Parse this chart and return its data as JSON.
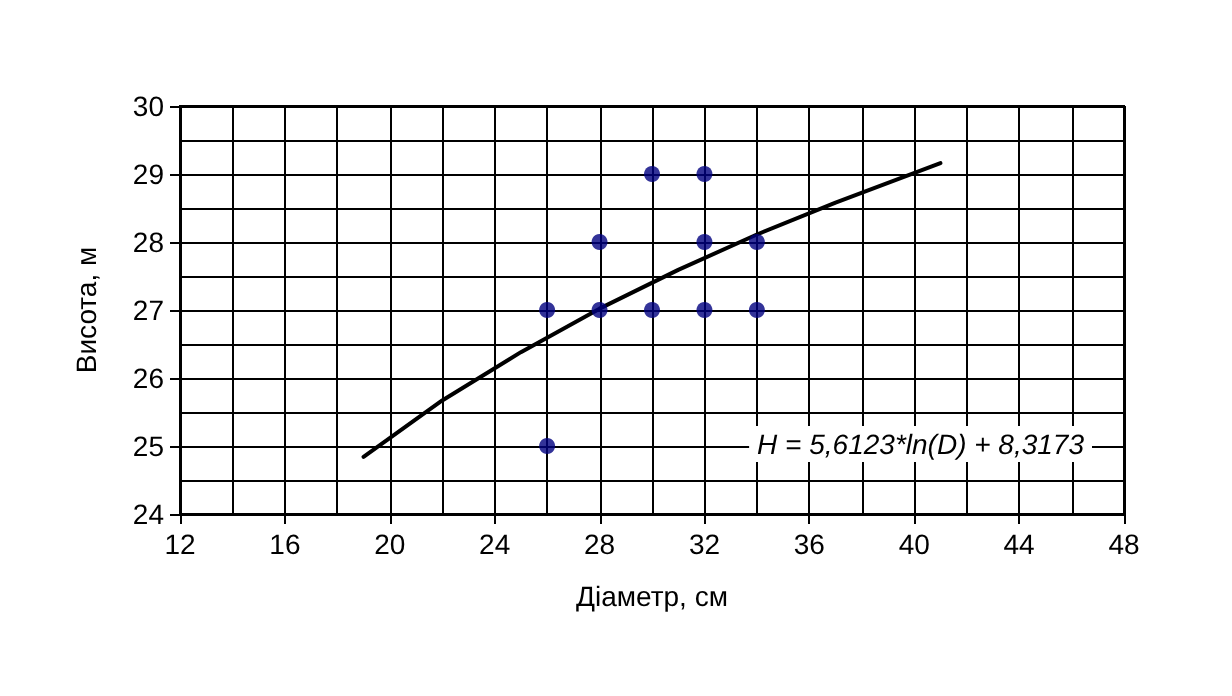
{
  "chart_data": {
    "type": "scatter",
    "xlabel": "Діаметр, см",
    "ylabel": "Висота, м",
    "xlim": [
      12,
      48
    ],
    "xticks": [
      12,
      16,
      20,
      24,
      28,
      32,
      36,
      40,
      44,
      48
    ],
    "ylim": [
      24,
      30
    ],
    "yticks": [
      24,
      25,
      26,
      27,
      28,
      29,
      30
    ],
    "grid": true,
    "marker": "circle",
    "series": [
      {
        "color": "#000080",
        "x": [
          26,
          26,
          28,
          28,
          30,
          30,
          32,
          32,
          32,
          34,
          34
        ],
        "values": [
          27,
          25,
          28,
          27,
          29,
          27,
          29,
          28,
          27,
          28,
          27
        ]
      },
      {
        "type": "line",
        "color": "#000000",
        "marker": "none",
        "line_style": "solid",
        "x": [
          19,
          22,
          25,
          28,
          31,
          34,
          37,
          41
        ],
        "values": [
          24.84,
          25.67,
          26.38,
          27.02,
          27.59,
          28.11,
          28.58,
          29.16
        ]
      }
    ],
    "annotations": [
      "H = 5,6123*ln(D) + 8,3173"
    ]
  }
}
